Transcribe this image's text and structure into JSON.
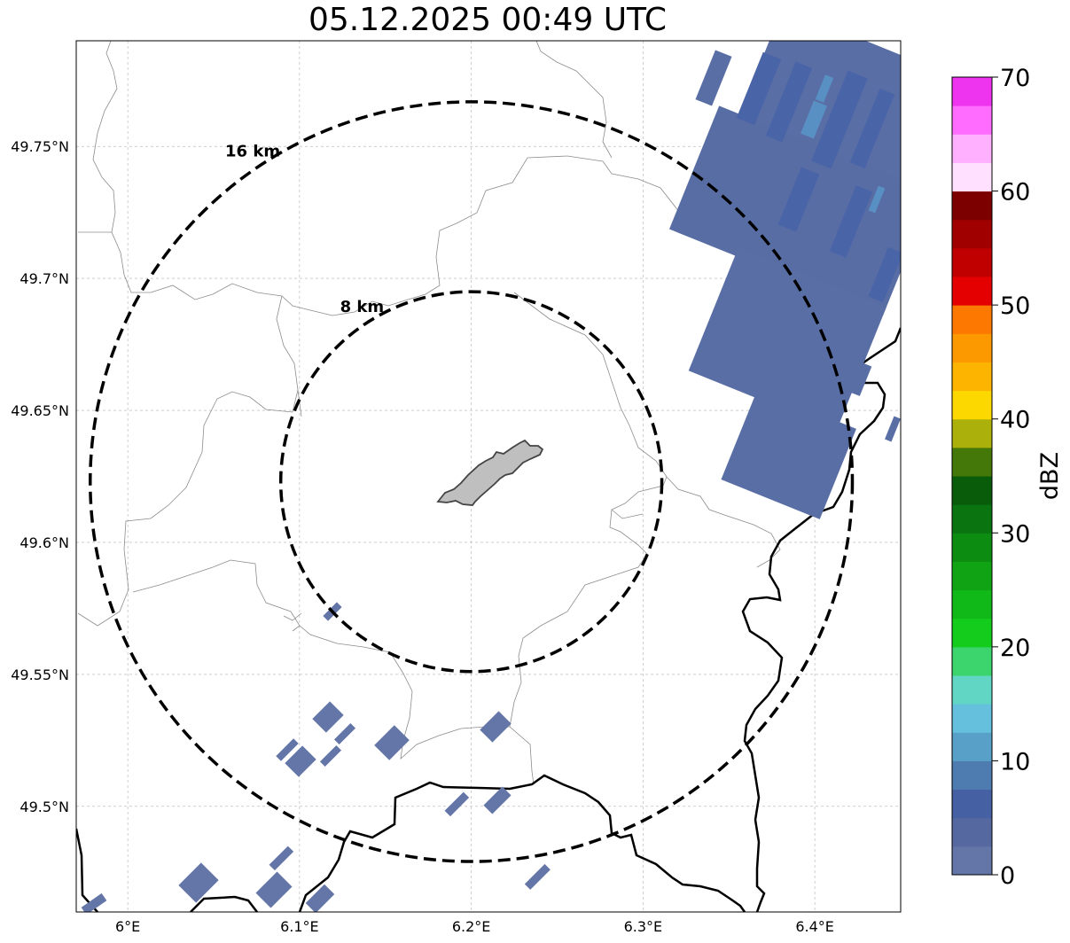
{
  "title": "05.12.2025 00:49 UTC",
  "map": {
    "lon_ticks": [
      {
        "value": 6.0,
        "label": "6°E"
      },
      {
        "value": 6.1,
        "label": "6.1°E"
      },
      {
        "value": 6.2,
        "label": "6.2°E"
      },
      {
        "value": 6.3,
        "label": "6.3°E"
      },
      {
        "value": 6.4,
        "label": "6.4°E"
      }
    ],
    "lat_ticks": [
      {
        "value": 49.75,
        "label": "49.75°N"
      },
      {
        "value": 49.7,
        "label": "49.7°N"
      },
      {
        "value": 49.65,
        "label": "49.65°N"
      },
      {
        "value": 49.6,
        "label": "49.6°N"
      },
      {
        "value": 49.55,
        "label": "49.55°N"
      },
      {
        "value": 49.5,
        "label": "49.5°N"
      }
    ],
    "extent": {
      "lon_min": 5.97,
      "lon_max": 6.45,
      "lat_min": 49.46,
      "lat_max": 49.79
    },
    "center": {
      "lon": 6.2,
      "lat": 49.623
    },
    "rings": [
      {
        "radius_km": 8,
        "label": "8 km"
      },
      {
        "radius_km": 16,
        "label": "16 km"
      }
    ],
    "gridlines": true
  },
  "colorbar": {
    "label": "dBZ",
    "min": 0,
    "max": 70,
    "step": 5,
    "tick_values": [
      0,
      10,
      20,
      30,
      40,
      50,
      60,
      70
    ],
    "tick_labels": [
      "0",
      "10",
      "20",
      "30",
      "40",
      "50",
      "60",
      "70"
    ],
    "colors": [
      "#6476a8",
      "#5668a0",
      "#4660a4",
      "#4e7cb0",
      "#58a0c8",
      "#64c0dc",
      "#62d6c4",
      "#3cd46c",
      "#14cc1c",
      "#10b818",
      "#10a414",
      "#0c8c10",
      "#0a7410",
      "#085c0a",
      "#447808",
      "#acb00a",
      "#fcd800",
      "#fcb400",
      "#fc9800",
      "#fc7800",
      "#e40000",
      "#c00000",
      "#a00000",
      "#7c0000",
      "#ffe0ff",
      "#ffb0ff",
      "#ff6cff",
      "#ee34ee"
    ]
  },
  "colors": {
    "echo_main": "#5a6ea6",
    "echo_light": "#6a80b4",
    "echo_blue": "#5890c4",
    "urban_fill": "#bfbfbf",
    "border": "#000000",
    "admin_line": "#8c8c8c"
  }
}
